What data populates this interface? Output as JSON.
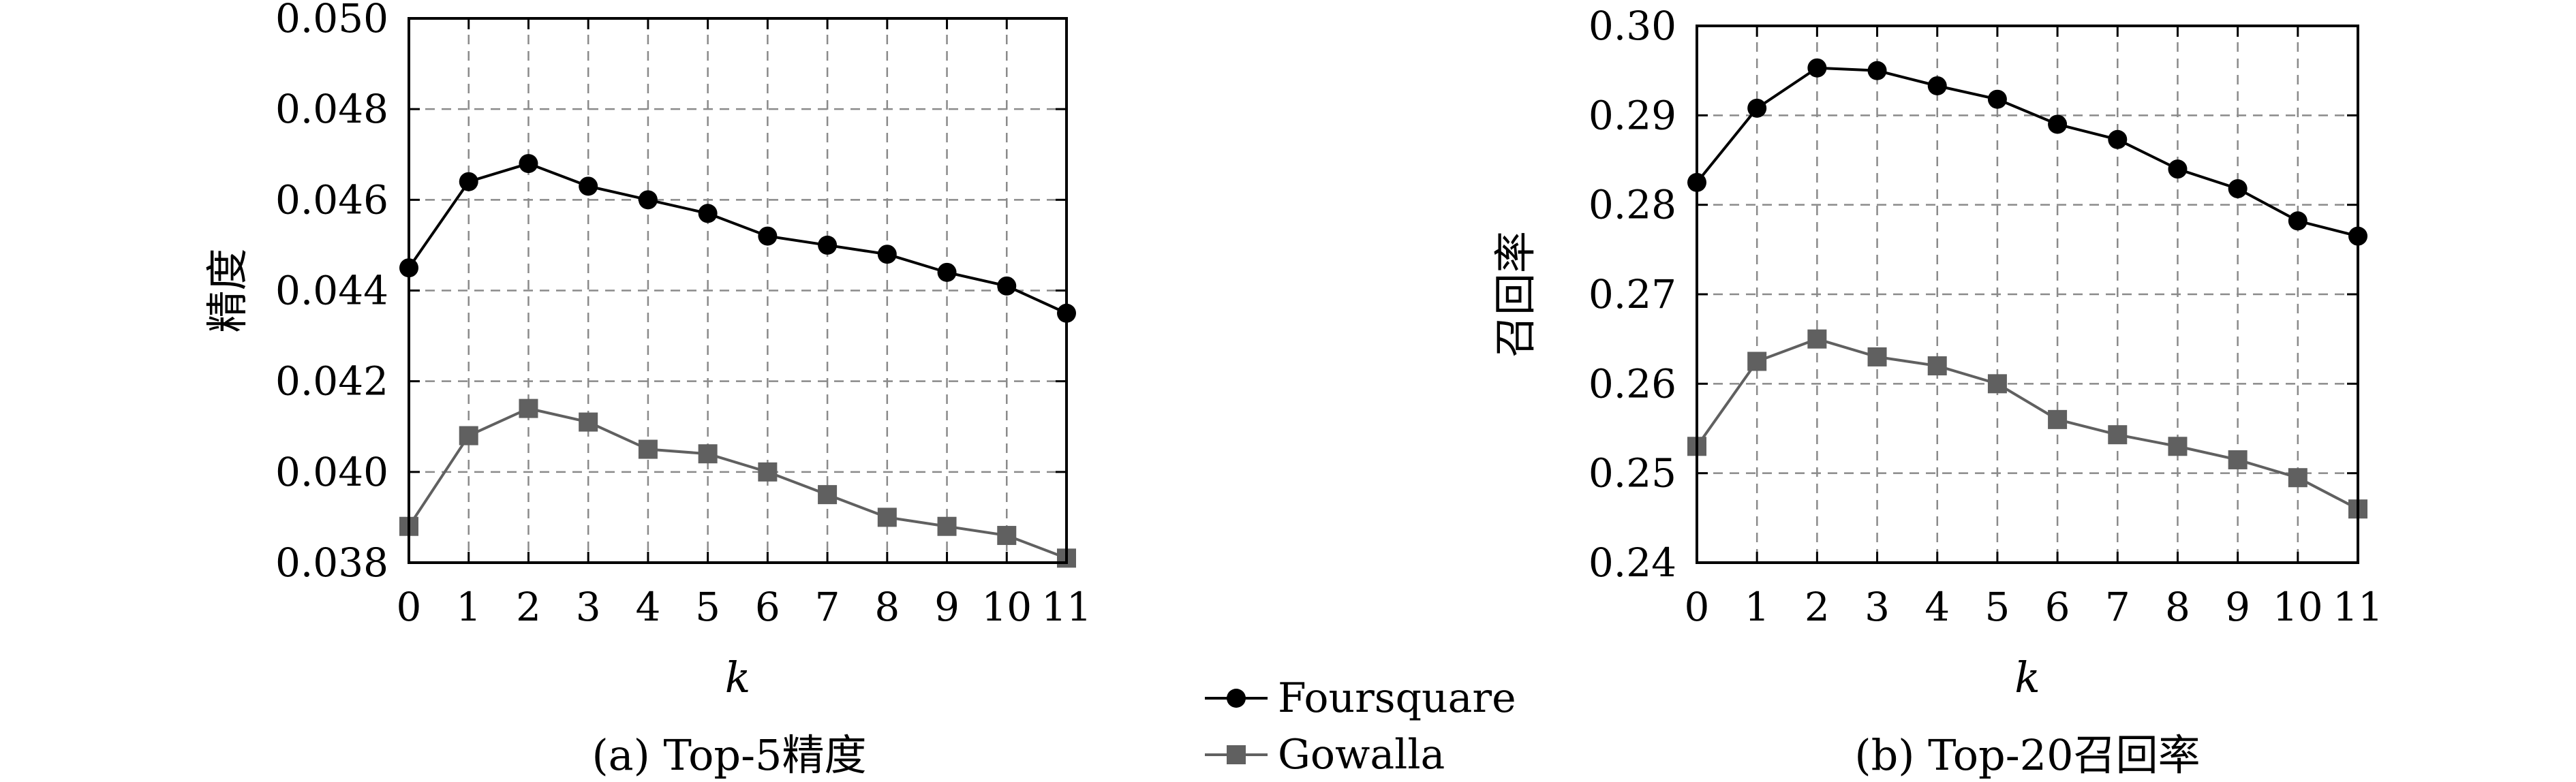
{
  "chart_data": [
    {
      "type": "line",
      "caption": "(a) Top-5精度",
      "xlabel": "k",
      "ylabel": "精度",
      "x": [
        0,
        1,
        2,
        3,
        4,
        5,
        6,
        7,
        8,
        9,
        10,
        11
      ],
      "ylim": [
        0.038,
        0.05
      ],
      "yticks": [
        "0.038",
        "0.040",
        "0.042",
        "0.044",
        "0.046",
        "0.048",
        "0.050"
      ],
      "grid": true,
      "series": [
        {
          "name": "Foursquare",
          "color": "#000000",
          "marker": "circle",
          "values": [
            0.0445,
            0.0464,
            0.0468,
            0.0463,
            0.046,
            0.0457,
            0.0452,
            0.045,
            0.0448,
            0.0444,
            0.0441,
            0.0435
          ]
        },
        {
          "name": "Gowalla",
          "color": "#606060",
          "marker": "square",
          "values": [
            0.0388,
            0.0408,
            0.0414,
            0.0411,
            0.0405,
            0.0404,
            0.04,
            0.0395,
            0.039,
            0.0388,
            0.0386,
            0.0381
          ]
        }
      ]
    },
    {
      "type": "line",
      "caption": "(b) Top-20召回率",
      "xlabel": "k",
      "ylabel": "召回率",
      "x": [
        0,
        1,
        2,
        3,
        4,
        5,
        6,
        7,
        8,
        9,
        10,
        11
      ],
      "ylim": [
        0.24,
        0.3
      ],
      "yticks": [
        "0.24",
        "0.25",
        "0.26",
        "0.27",
        "0.28",
        "0.29",
        "0.30"
      ],
      "grid": true,
      "series": [
        {
          "name": "Foursquare",
          "color": "#000000",
          "marker": "circle",
          "values": [
            0.2825,
            0.2908,
            0.2953,
            0.295,
            0.2933,
            0.2918,
            0.289,
            0.2873,
            0.284,
            0.2818,
            0.2782,
            0.2765
          ]
        },
        {
          "name": "Gowalla",
          "color": "#606060",
          "marker": "square",
          "values": [
            0.253,
            0.2625,
            0.265,
            0.263,
            0.262,
            0.26,
            0.256,
            0.2543,
            0.253,
            0.2515,
            0.2495,
            0.246
          ]
        }
      ]
    }
  ],
  "legend": {
    "placement": "bottom-center",
    "items": [
      {
        "label": "Foursquare",
        "color": "#000000",
        "marker": "circle"
      },
      {
        "label": "Gowalla",
        "color": "#606060",
        "marker": "square"
      }
    ]
  }
}
